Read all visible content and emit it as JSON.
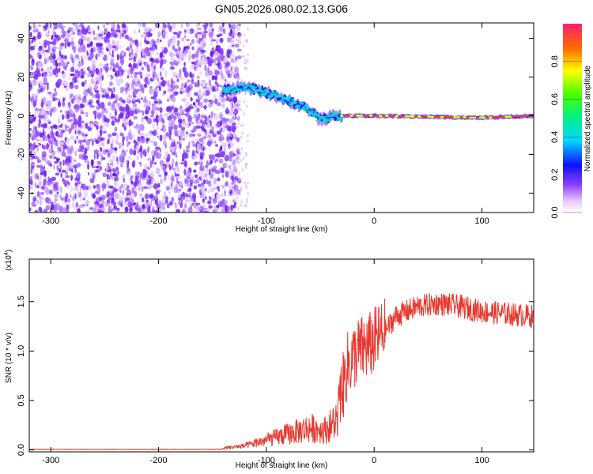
{
  "title": "GN05.2026.080.02.13.G06",
  "chart_data": [
    {
      "type": "heatmap",
      "xlabel": "Height of straight line (km)",
      "ylabel": "Frequency (Hz)",
      "xlim": [
        -320,
        148
      ],
      "ylim": [
        -50,
        48
      ],
      "x_ticks": [
        -300,
        -200,
        -100,
        0,
        100
      ],
      "y_ticks": [
        -40,
        -20,
        0,
        20,
        40
      ],
      "colorbar": {
        "label": "Normalized spectral amplitude",
        "range": [
          0,
          1
        ],
        "ticks": [
          0.0,
          0.2,
          0.4,
          0.6,
          0.8
        ]
      },
      "features": {
        "noise_region_end_km": -135,
        "signal_band": [
          {
            "x": -140,
            "y": 13
          },
          {
            "x": -120,
            "y": 15
          },
          {
            "x": -100,
            "y": 12
          },
          {
            "x": -80,
            "y": 8
          },
          {
            "x": -60,
            "y": 3
          },
          {
            "x": -50,
            "y": -2
          },
          {
            "x": -35,
            "y": 0
          },
          {
            "x": 0,
            "y": 0
          },
          {
            "x": 100,
            "y": -1
          },
          {
            "x": 148,
            "y": 0
          }
        ]
      }
    },
    {
      "type": "line",
      "xlabel": "Height of straight line (km)",
      "ylabel": "SNR (10 * v/v)",
      "y_scale_label": "(x10",
      "y_scale_exp": "4",
      "y_scale_close": ")",
      "xlim": [
        -320,
        148
      ],
      "ylim": [
        -0.02,
        1.93
      ],
      "x_ticks": [
        -300,
        -200,
        -100,
        0,
        100
      ],
      "y_ticks": [
        0.0,
        0.5,
        1.0,
        1.5
      ],
      "y_tick_labels": [
        "0.0",
        "0.5",
        "1.0",
        "1.5"
      ],
      "series": [
        {
          "color": "#e8382e",
          "trend": [
            {
              "x": -320,
              "y": 0.01
            },
            {
              "x": -150,
              "y": 0.01
            },
            {
              "x": -120,
              "y": 0.04
            },
            {
              "x": -100,
              "y": 0.1
            },
            {
              "x": -80,
              "y": 0.16
            },
            {
              "x": -60,
              "y": 0.22
            },
            {
              "x": -45,
              "y": 0.2
            },
            {
              "x": -35,
              "y": 0.3
            },
            {
              "x": -25,
              "y": 0.85
            },
            {
              "x": -15,
              "y": 1.0
            },
            {
              "x": -5,
              "y": 1.05
            },
            {
              "x": 10,
              "y": 1.2
            },
            {
              "x": 20,
              "y": 1.35
            },
            {
              "x": 40,
              "y": 1.45
            },
            {
              "x": 60,
              "y": 1.48
            },
            {
              "x": 80,
              "y": 1.45
            },
            {
              "x": 100,
              "y": 1.4
            },
            {
              "x": 120,
              "y": 1.38
            },
            {
              "x": 148,
              "y": 1.35
            }
          ]
        }
      ]
    }
  ]
}
